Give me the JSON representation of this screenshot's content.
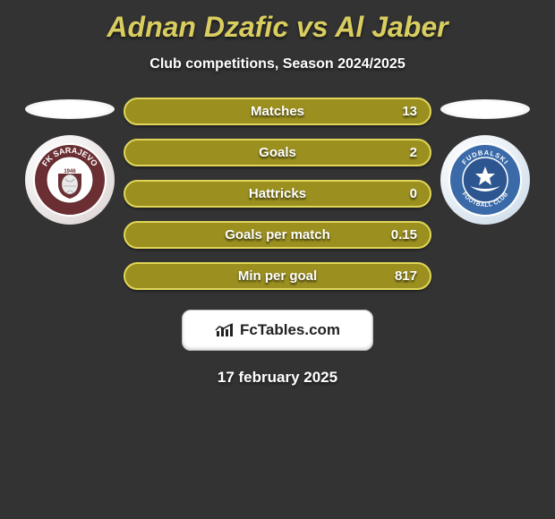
{
  "header": {
    "title": "Adnan Dzafic vs Al Jaber",
    "subtitle": "Club competitions, Season 2024/2025"
  },
  "stats": [
    {
      "label": "Matches",
      "value": "13",
      "bg": "#9a8f1f",
      "border": "#e0d658"
    },
    {
      "label": "Goals",
      "value": "2",
      "bg": "#9a8f1f",
      "border": "#e0d658"
    },
    {
      "label": "Hattricks",
      "value": "0",
      "bg": "#9a8f1f",
      "border": "#e0d658"
    },
    {
      "label": "Goals per match",
      "value": "0.15",
      "bg": "#9a8f1f",
      "border": "#e0d658"
    },
    {
      "label": "Min per goal",
      "value": "817",
      "bg": "#9a8f1f",
      "border": "#e0d658"
    }
  ],
  "brand": {
    "name": "FcTables.com"
  },
  "date": "17 february 2025",
  "colors": {
    "background": "#333333",
    "title_color": "#d9cd60"
  },
  "crests": {
    "left": {
      "ring_fill": "#6b2f33",
      "ring_stroke": "#5a2529",
      "text_curve": "FK SARAJEVO",
      "year": "1946",
      "text_fill": "#ffffff"
    },
    "right": {
      "ring_fill": "#3a6aa8",
      "ring_stroke": "#2d5690",
      "inner_fill": "#2d5690",
      "top_text": "FUDBALSKI",
      "bottom_text": "FOOTBALL CLUB",
      "text_fill": "#ffffff"
    }
  }
}
